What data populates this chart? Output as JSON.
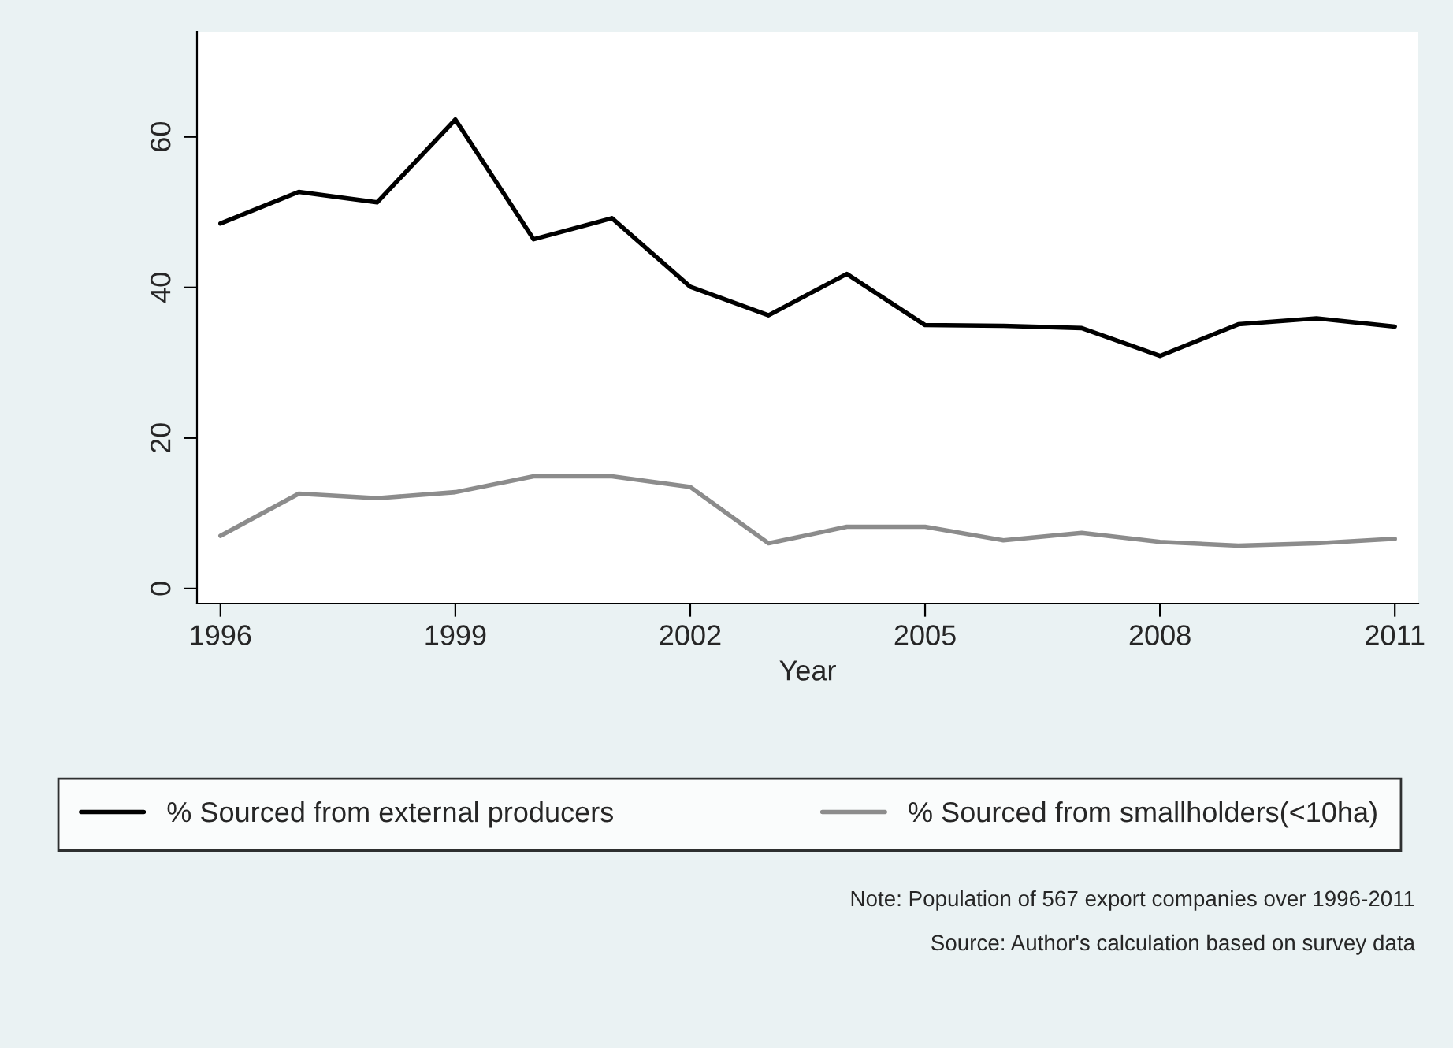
{
  "chart_data": {
    "type": "line",
    "xlabel": "Year",
    "x": [
      1996,
      1997,
      1998,
      1999,
      2000,
      2001,
      2002,
      2003,
      2004,
      2005,
      2006,
      2007,
      2008,
      2009,
      2010,
      2011
    ],
    "series": [
      {
        "name": "% Sourced from external producers",
        "color": "#000000",
        "values": [
          48.5,
          52.7,
          51.3,
          62.3,
          46.4,
          49.2,
          40.1,
          36.3,
          41.8,
          35.0,
          34.9,
          34.6,
          30.9,
          35.1,
          35.9,
          34.8
        ]
      },
      {
        "name": "% Sourced from smallholders(<10ha)",
        "color": "#8c8c8c",
        "values": [
          7.0,
          12.6,
          12.0,
          12.8,
          14.9,
          14.9,
          13.5,
          6.0,
          8.2,
          8.2,
          6.4,
          7.4,
          6.2,
          5.7,
          6.0,
          6.6
        ]
      }
    ],
    "xlim": [
      1995.7,
      2011.3
    ],
    "xticks": [
      1996,
      1999,
      2002,
      2005,
      2008,
      2011
    ],
    "ylim": [
      -2,
      74
    ],
    "yticks": [
      0,
      20,
      40,
      60
    ],
    "grid": false,
    "legend": "bottom",
    "marker": "none",
    "line_style": "solid",
    "annotations": [
      "Note: Population of 567 export companies over 1996-2011",
      "Source: Author's calculation based on survey data"
    ]
  }
}
